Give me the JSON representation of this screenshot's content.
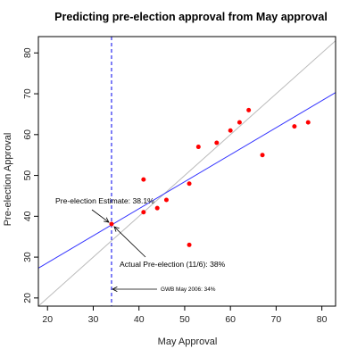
{
  "chart_data": {
    "type": "scatter",
    "title": "Predicting pre-election approval from May approval",
    "xlabel": "May Approval",
    "ylabel": "Pre-election Approval",
    "xlim": [
      18,
      83
    ],
    "ylim": [
      18,
      84
    ],
    "xticks": [
      20,
      30,
      40,
      50,
      60,
      70,
      80
    ],
    "yticks": [
      20,
      30,
      40,
      50,
      60,
      70,
      80
    ],
    "grid": false,
    "points": [
      {
        "x": 41,
        "y": 49
      },
      {
        "x": 41,
        "y": 41
      },
      {
        "x": 44,
        "y": 42
      },
      {
        "x": 46,
        "y": 44
      },
      {
        "x": 51,
        "y": 48
      },
      {
        "x": 51,
        "y": 33
      },
      {
        "x": 53,
        "y": 57
      },
      {
        "x": 57,
        "y": 58
      },
      {
        "x": 60,
        "y": 61
      },
      {
        "x": 62,
        "y": 63
      },
      {
        "x": 64,
        "y": 66
      },
      {
        "x": 67,
        "y": 55
      },
      {
        "x": 74,
        "y": 62
      },
      {
        "x": 77,
        "y": 63
      },
      {
        "x": 34,
        "y": 38.1
      }
    ],
    "point_color": "#ff0000",
    "identity_line": {
      "color": "#bbbbbb",
      "slope": 1,
      "intercept": 0
    },
    "regression_line": {
      "color": "#3333ff",
      "x": [
        18,
        83
      ],
      "y": [
        27.3,
        70.3
      ]
    },
    "vertical_line": {
      "x": 34,
      "color": "#0000ee",
      "style": "dashed"
    },
    "annotations": {
      "estimate": "Pre-election Estimate: 38.1%",
      "actual": "Actual Pre-election (11/6): 38%",
      "gwb": "GWB May 2006: 34%"
    }
  }
}
